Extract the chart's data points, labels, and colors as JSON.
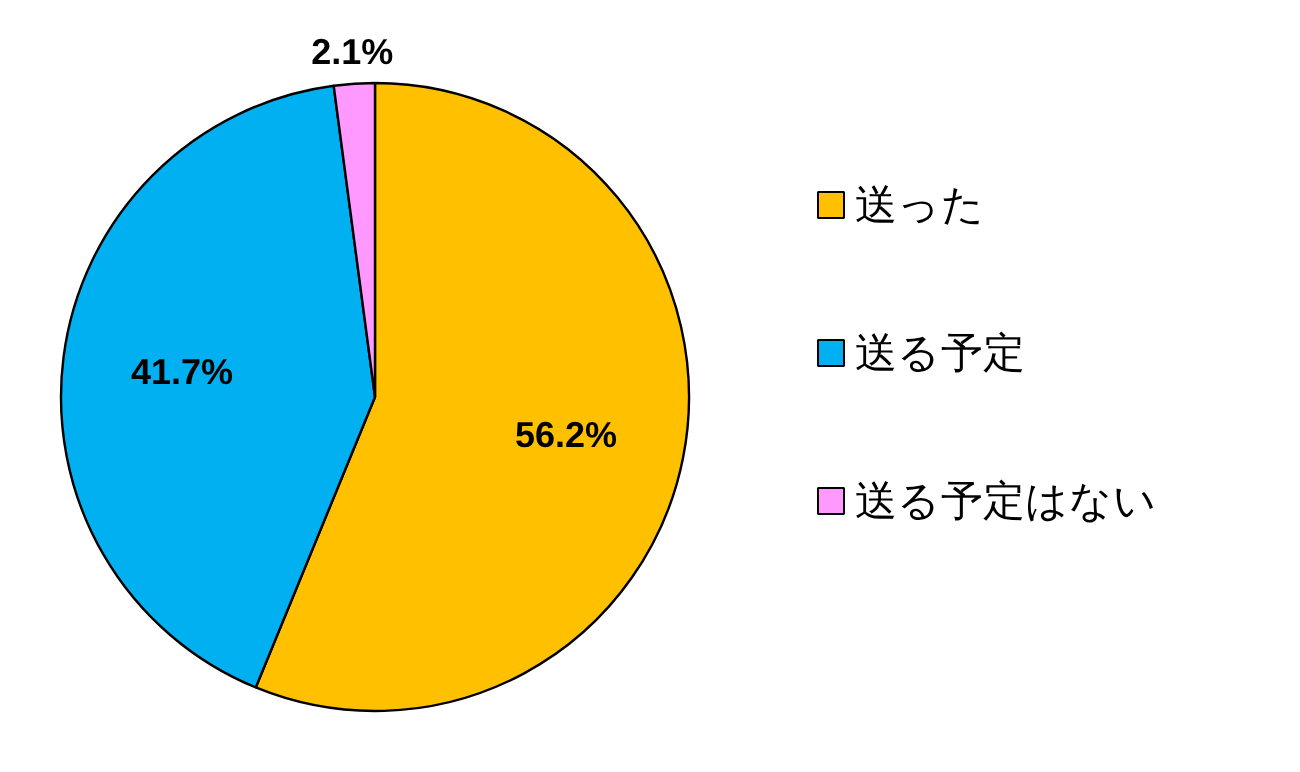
{
  "chart_data": {
    "type": "pie",
    "categories": [
      "送った",
      "送る予定",
      "送る予定はない"
    ],
    "values": [
      56.2,
      41.7,
      2.1
    ],
    "colors": [
      "#ffc000",
      "#00b0f0",
      "#ff99ff"
    ],
    "value_labels": [
      "56.2%",
      "41.7%",
      "2.1%"
    ],
    "legend": "right"
  }
}
